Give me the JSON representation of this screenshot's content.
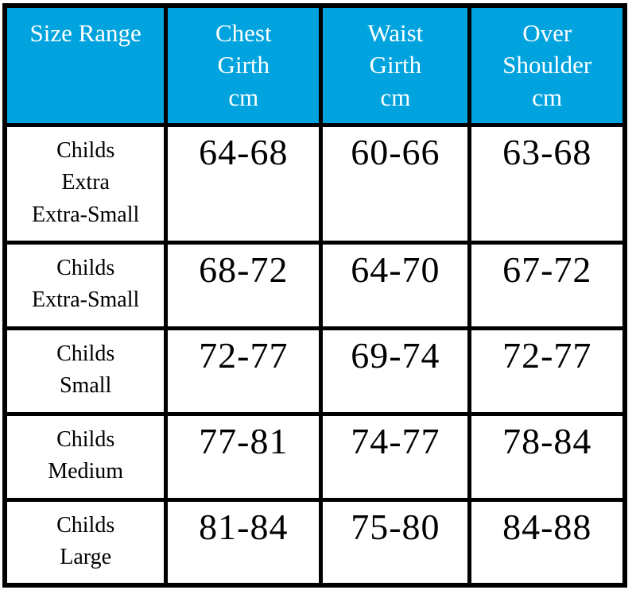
{
  "colors": {
    "header_bg": "#00A3DE",
    "header_text": "#FFFFFF",
    "body_text": "#000000",
    "border": "#000000",
    "page_bg": "#FFFFFF"
  },
  "chart_data": {
    "type": "table",
    "columns": [
      "Size Range",
      "Chest Girth cm",
      "Waist Girth cm",
      "Over Shoulder cm"
    ],
    "rows": [
      [
        "Childs Extra Extra-Small",
        "64-68",
        "60-66",
        "63-68"
      ],
      [
        "Childs Extra-Small",
        "68-72",
        "64-70",
        "67-72"
      ],
      [
        "Childs Small",
        "72-77",
        "69-74",
        "72-77"
      ],
      [
        "Childs Medium",
        "77-81",
        "74-77",
        "78-84"
      ],
      [
        "Childs Large",
        "81-84",
        "75-80",
        "84-88"
      ]
    ]
  },
  "display": {
    "header": {
      "size_range": "Size Range",
      "chest": "Chest\nGirth\ncm",
      "waist": "Waist\nGirth\ncm",
      "shoulder": "Over\nShoulder\ncm"
    },
    "rows": [
      {
        "size": "Childs\nExtra\nExtra-Small",
        "chest": "64-68",
        "waist": "60-66",
        "shoulder": "63-68"
      },
      {
        "size": "Childs\nExtra-Small",
        "chest": "68-72",
        "waist": "64-70",
        "shoulder": "67-72"
      },
      {
        "size": "Childs\nSmall",
        "chest": "72-77",
        "waist": "69-74",
        "shoulder": "72-77"
      },
      {
        "size": "Childs\nMedium",
        "chest": "77-81",
        "waist": "74-77",
        "shoulder": "78-84"
      },
      {
        "size": "Childs\nLarge",
        "chest": "81-84",
        "waist": "75-80",
        "shoulder": "84-88"
      }
    ]
  }
}
